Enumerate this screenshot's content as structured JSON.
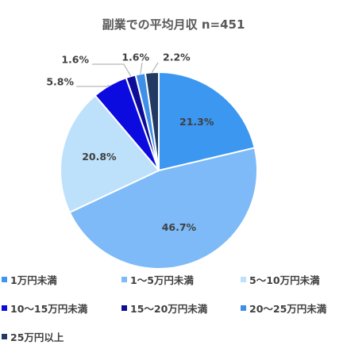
{
  "chart_data": {
    "type": "pie",
    "title": "副業での平均月収 n=451",
    "categories": [
      "1万円未満",
      "1～5万円未満",
      "5～10万円未満",
      "10～15万円未満",
      "15～20万円未満",
      "20～25万円未満",
      "25万円以上"
    ],
    "values": [
      21.3,
      46.7,
      20.8,
      5.8,
      1.6,
      1.6,
      2.2
    ],
    "value_labels": [
      "21.3%",
      "46.7%",
      "20.8%",
      "5.8%",
      "1.6%",
      "1.6%",
      "2.2%"
    ],
    "colors": [
      "#3c97f0",
      "#7dbaf7",
      "#bde0fb",
      "#0b0be0",
      "#0c0c99",
      "#3f8fe8",
      "#223a63"
    ],
    "legend_position": "bottom",
    "start": "top, clockwise"
  }
}
